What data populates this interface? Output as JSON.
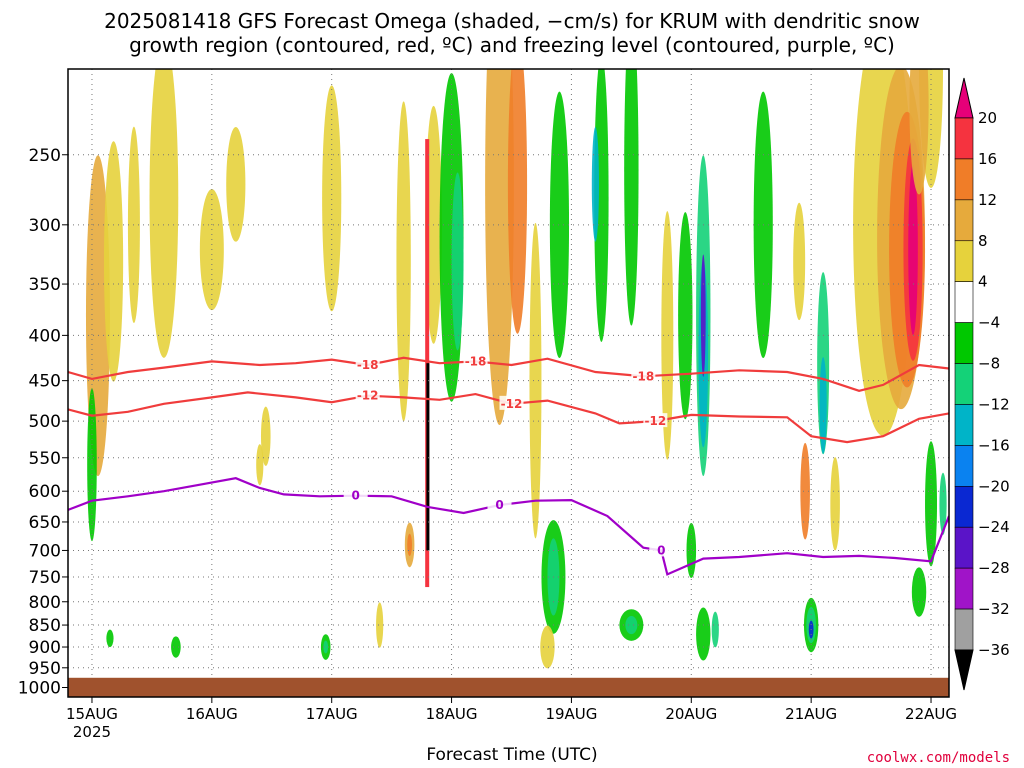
{
  "header": {
    "title_line1": "2025081418 GFS Forecast Omega (shaded, −cm/s) for KRUM with dendritic snow",
    "title_line2": "growth region (contoured, red, ºC) and freezing level (contoured, purple, ºC)"
  },
  "footer": {
    "credit": "coolwx.com/models",
    "xlabel": "Forecast Time (UTC)"
  },
  "chart_data": {
    "type": "heatmap",
    "title": "2025081418 GFS Forecast Omega (shaded, −cm/s) for KRUM with dendritic snow growth region (contoured, red, ºC) and freezing level (contoured, purple, ºC)",
    "xlabel": "Forecast Time (UTC)",
    "ylabel": "",
    "x_ticks": [
      "15AUG",
      "16AUG",
      "17AUG",
      "18AUG",
      "19AUG",
      "20AUG",
      "21AUG",
      "22AUG"
    ],
    "x_tick_sublabel": "2025",
    "x_range": [
      -0.2,
      7.15
    ],
    "y_ticks": [
      250,
      300,
      350,
      400,
      450,
      500,
      550,
      600,
      650,
      700,
      750,
      800,
      850,
      900,
      950,
      1000
    ],
    "y_range": [
      200,
      1025
    ],
    "y_axis": "pressure (hPa, log, inverted)",
    "grid": true,
    "colorbar": {
      "labels": [
        "20",
        "16",
        "12",
        "8",
        "4",
        "−4",
        "−8",
        "−12",
        "−16",
        "−20",
        "−24",
        "−28",
        "−32",
        "−36"
      ],
      "colors": [
        "#e60078",
        "#f5333f",
        "#f07d28",
        "#e6aa3c",
        "#e6d23c",
        "#ffffff",
        "#00c800",
        "#14d278",
        "#00b4c8",
        "#0a82f0",
        "#0a28d2",
        "#5a14c8",
        "#a014c8",
        "#a0a0a0",
        "#000000"
      ]
    },
    "terrain_color": "#a0522d",
    "terrain_top_hPa": 975,
    "contours": [
      {
        "label": "-18",
        "color": "#f03c3c",
        "x": [
          -0.2,
          0.0,
          0.3,
          0.6,
          1.0,
          1.4,
          1.7,
          2.0,
          2.3,
          2.6,
          2.9,
          3.2,
          3.5,
          3.8,
          4.2,
          4.6,
          5.0,
          5.4,
          5.8,
          6.1,
          6.4,
          6.6,
          6.9,
          7.15
        ],
        "y": [
          440,
          448,
          440,
          435,
          428,
          432,
          430,
          426,
          432,
          424,
          430,
          428,
          432,
          425,
          440,
          445,
          442,
          438,
          440,
          448,
          462,
          455,
          432,
          436
        ]
      },
      {
        "label": "-12",
        "color": "#f03c3c",
        "x": [
          -0.2,
          0.0,
          0.3,
          0.6,
          1.0,
          1.3,
          1.7,
          2.0,
          2.3,
          2.6,
          2.9,
          3.2,
          3.5,
          3.8,
          4.2,
          4.4,
          4.7,
          5.0,
          5.4,
          5.8,
          6.0,
          6.3,
          6.6,
          6.9,
          7.15
        ],
        "y": [
          485,
          493,
          488,
          478,
          470,
          464,
          470,
          476,
          468,
          470,
          473,
          466,
          478,
          474,
          490,
          503,
          500,
          492,
          494,
          495,
          520,
          528,
          520,
          497,
          490
        ]
      },
      {
        "label": "0",
        "color": "#a000c8",
        "x": [
          -0.2,
          0.0,
          0.3,
          0.6,
          0.9,
          1.2,
          1.4,
          1.6,
          1.9,
          2.2,
          2.5,
          2.8,
          3.1,
          3.4,
          3.7,
          4.0,
          4.3,
          4.6,
          4.75,
          4.8,
          5.1,
          5.4,
          5.8,
          6.1,
          6.4,
          6.7,
          7.0,
          7.15
        ],
        "y": [
          630,
          615,
          608,
          600,
          590,
          580,
          595,
          605,
          608,
          607,
          608,
          625,
          635,
          622,
          615,
          614,
          640,
          695,
          700,
          745,
          715,
          712,
          705,
          712,
          710,
          714,
          720,
          640
        ]
      }
    ]
  }
}
